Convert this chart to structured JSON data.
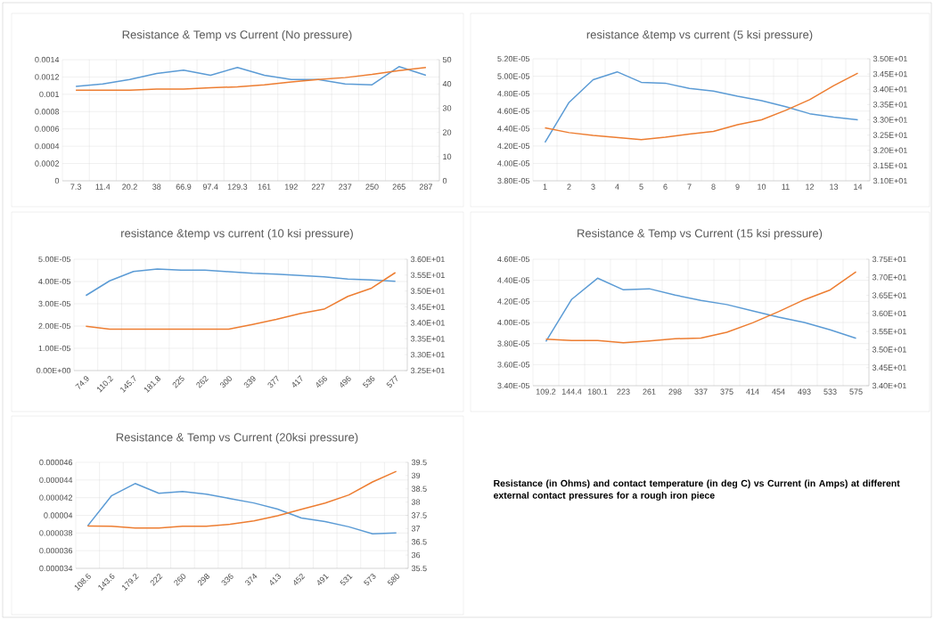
{
  "chart_data": [
    {
      "type": "line",
      "title": "Resistance & Temp vs Current (No pressure)",
      "categories": [
        "7.3",
        "11.4",
        "20.2",
        "38",
        "66.9",
        "97.4",
        "129.3",
        "161",
        "192",
        "227",
        "237",
        "250",
        "265",
        "287"
      ],
      "series": [
        {
          "color": "#5b9bd5",
          "values": [
            0.00109,
            0.00112,
            0.00117,
            0.00124,
            0.00128,
            0.00122,
            0.00131,
            0.00122,
            0.00117,
            0.00117,
            0.00112,
            0.00111,
            0.00132,
            0.00122
          ]
        },
        {
          "color": "#ed7d31",
          "axis": "y2",
          "values": [
            37.4,
            37.4,
            37.4,
            37.9,
            37.9,
            38.4,
            38.8,
            39.6,
            40.8,
            41.8,
            42.6,
            43.9,
            45.5,
            46.8
          ]
        }
      ],
      "ylim": [
        0,
        0.0014
      ],
      "yticks": [
        0,
        0.0002,
        0.0004,
        0.0006,
        0.0008,
        0.001,
        0.0012,
        0.0014
      ],
      "y2lim": [
        0,
        50
      ],
      "y2ticks": [
        0,
        10,
        20,
        30,
        40,
        50
      ],
      "grid": true
    },
    {
      "type": "line",
      "title": "resistance &temp vs current (5 ksi pressure)",
      "categories": [
        "1",
        "2",
        "3",
        "4",
        "5",
        "6",
        "7",
        "8",
        "9",
        "10",
        "11",
        "12",
        "13",
        "14"
      ],
      "series": [
        {
          "color": "#5b9bd5",
          "values": [
            4.24e-05,
            4.7e-05,
            4.96e-05,
            5.05e-05,
            4.93e-05,
            4.92e-05,
            4.86e-05,
            4.83e-05,
            4.77e-05,
            4.72e-05,
            4.65e-05,
            4.57e-05,
            4.53e-05,
            4.5e-05
          ]
        },
        {
          "color": "#ed7d31",
          "axis": "y2",
          "values": [
            32.74,
            32.58,
            32.49,
            32.42,
            32.35,
            32.43,
            32.53,
            32.62,
            32.84,
            33.0,
            33.31,
            33.66,
            34.12,
            34.53
          ]
        }
      ],
      "ylim": [
        3.8e-05,
        5.2e-05
      ],
      "yticks": [
        {
          "value": 3.8e-05,
          "label": "3.80E-05"
        },
        {
          "value": 4e-05,
          "label": "4.00E-05"
        },
        {
          "value": 4.2e-05,
          "label": "4.20E-05"
        },
        {
          "value": 4.4e-05,
          "label": "4.40E-05"
        },
        {
          "value": 4.6e-05,
          "label": "4.60E-05"
        },
        {
          "value": 4.8e-05,
          "label": "4.80E-05"
        },
        {
          "value": 5e-05,
          "label": "5.00E-05"
        },
        {
          "value": 5.2e-05,
          "label": "5.20E-05"
        }
      ],
      "y2lim": [
        31,
        35
      ],
      "y2ticks": [
        {
          "value": 31,
          "label": "3.10E+01"
        },
        {
          "value": 31.5,
          "label": "3.15E+01"
        },
        {
          "value": 32,
          "label": "3.20E+01"
        },
        {
          "value": 32.5,
          "label": "3.25E+01"
        },
        {
          "value": 33,
          "label": "3.30E+01"
        },
        {
          "value": 33.5,
          "label": "3.35E+01"
        },
        {
          "value": 34,
          "label": "3.40E+01"
        },
        {
          "value": 34.5,
          "label": "3.45E+01"
        },
        {
          "value": 35,
          "label": "3.50E+01"
        }
      ],
      "grid": true
    },
    {
      "type": "line",
      "title": "resistance &temp vs current (10 ksi pressure)",
      "categories": [
        "74.9",
        "110.2",
        "145.7",
        "181.8",
        "225",
        "262",
        "300",
        "339",
        "377",
        "417",
        "456",
        "496",
        "536",
        "577"
      ],
      "series": [
        {
          "color": "#5b9bd5",
          "values": [
            3.37e-05,
            4.03e-05,
            4.45e-05,
            4.56e-05,
            4.51e-05,
            4.51e-05,
            4.44e-05,
            4.37e-05,
            4.33e-05,
            4.27e-05,
            4.21e-05,
            4.11e-05,
            4.07e-05,
            4.01e-05
          ]
        },
        {
          "color": "#ed7d31",
          "axis": "y2",
          "values": [
            33.89,
            33.8,
            33.8,
            33.8,
            33.8,
            33.8,
            33.8,
            33.95,
            34.11,
            34.29,
            34.43,
            34.83,
            35.09,
            35.58
          ]
        }
      ],
      "ylim": [
        0,
        5e-05
      ],
      "yticks": [
        {
          "value": 0,
          "label": "0.00E+00"
        },
        {
          "value": 1e-05,
          "label": "1.00E-05"
        },
        {
          "value": 2e-05,
          "label": "2.00E-05"
        },
        {
          "value": 3e-05,
          "label": "3.00E-05"
        },
        {
          "value": 4e-05,
          "label": "4.00E-05"
        },
        {
          "value": 5e-05,
          "label": "5.00E-05"
        }
      ],
      "y2lim": [
        32.5,
        36
      ],
      "y2ticks": [
        {
          "value": 32.5,
          "label": "3.25E+01"
        },
        {
          "value": 33,
          "label": "3.30E+01"
        },
        {
          "value": 33.5,
          "label": "3.35E+01"
        },
        {
          "value": 34,
          "label": "3.40E+01"
        },
        {
          "value": 34.5,
          "label": "3.45E+01"
        },
        {
          "value": 35,
          "label": "3.50E+01"
        },
        {
          "value": 35.5,
          "label": "3.55E+01"
        },
        {
          "value": 36,
          "label": "3.60E+01"
        }
      ],
      "grid": true
    },
    {
      "type": "line",
      "title": "Resistance & Temp vs  Current (15 ksi pressure)",
      "categories": [
        "109.2",
        "144.4",
        "180.1",
        "223",
        "261",
        "298",
        "337",
        "375",
        "414",
        "454",
        "493",
        "533",
        "575"
      ],
      "series": [
        {
          "color": "#5b9bd5",
          "values": [
            3.82e-05,
            4.22e-05,
            4.42e-05,
            4.31e-05,
            4.32e-05,
            4.26e-05,
            4.21e-05,
            4.17e-05,
            4.11e-05,
            4.05e-05,
            4e-05,
            3.93e-05,
            3.85e-05
          ]
        },
        {
          "color": "#ed7d31",
          "axis": "y2",
          "values": [
            35.29,
            35.25,
            35.25,
            35.19,
            35.24,
            35.3,
            35.32,
            35.48,
            35.74,
            36.05,
            36.38,
            36.65,
            37.15
          ]
        }
      ],
      "ylim": [
        3.4e-05,
        4.6e-05
      ],
      "yticks": [
        {
          "value": 3.4e-05,
          "label": "3.40E-05"
        },
        {
          "value": 3.6e-05,
          "label": "3.60E-05"
        },
        {
          "value": 3.8e-05,
          "label": "3.80E-05"
        },
        {
          "value": 4e-05,
          "label": "4.00E-05"
        },
        {
          "value": 4.2e-05,
          "label": "4.20E-05"
        },
        {
          "value": 4.4e-05,
          "label": "4.40E-05"
        },
        {
          "value": 4.6e-05,
          "label": "4.60E-05"
        }
      ],
      "y2lim": [
        34,
        37.5
      ],
      "y2ticks": [
        {
          "value": 34,
          "label": "3.40E+01"
        },
        {
          "value": 34.5,
          "label": "3.45E+01"
        },
        {
          "value": 35,
          "label": "3.50E+01"
        },
        {
          "value": 35.5,
          "label": "3.55E+01"
        },
        {
          "value": 36,
          "label": "3.60E+01"
        },
        {
          "value": 36.5,
          "label": "3.65E+01"
        },
        {
          "value": 37,
          "label": "3.70E+01"
        },
        {
          "value": 37.5,
          "label": "3.75E+01"
        }
      ],
      "grid": true
    },
    {
      "type": "line",
      "title": "Resistance & Temp vs Current (20ksi pressure)",
      "categories": [
        "108.6",
        "143.6",
        "179.2",
        "222",
        "260",
        "298",
        "336",
        "374",
        "413",
        "452",
        "491",
        "531",
        "573",
        "580"
      ],
      "series": [
        {
          "color": "#5b9bd5",
          "values": [
            3.88e-05,
            4.22e-05,
            4.36e-05,
            4.25e-05,
            4.27e-05,
            4.24e-05,
            4.19e-05,
            4.14e-05,
            4.07e-05,
            3.97e-05,
            3.93e-05,
            3.87e-05,
            3.79e-05,
            3.8e-05
          ]
        },
        {
          "color": "#ed7d31",
          "axis": "y2",
          "values": [
            37.1,
            37.09,
            37.02,
            37.02,
            37.09,
            37.09,
            37.16,
            37.29,
            37.48,
            37.73,
            37.96,
            38.27,
            38.76,
            39.16
          ]
        }
      ],
      "ylim": [
        3.4e-05,
        4.6e-05
      ],
      "yticks": [
        {
          "value": 3.4e-05,
          "label": "0.000034"
        },
        {
          "value": 3.6e-05,
          "label": "0.000036"
        },
        {
          "value": 3.8e-05,
          "label": "0.000038"
        },
        {
          "value": 4e-05,
          "label": "0.00004"
        },
        {
          "value": 4.2e-05,
          "label": "0.000042"
        },
        {
          "value": 4.4e-05,
          "label": "0.000044"
        },
        {
          "value": 4.6e-05,
          "label": "0.000046"
        }
      ],
      "y2lim": [
        35.5,
        39.5
      ],
      "y2ticks": [
        35.5,
        36,
        36.5,
        37,
        37.5,
        38,
        38.5,
        39,
        39.5
      ],
      "grid": true
    },
    {
      "type": "other",
      "annotations": [
        "Resistance (in Ohms) and contact temperature (in deg C) vs Current (in Amps) at different external contact pressures for a rough iron piece"
      ]
    }
  ]
}
